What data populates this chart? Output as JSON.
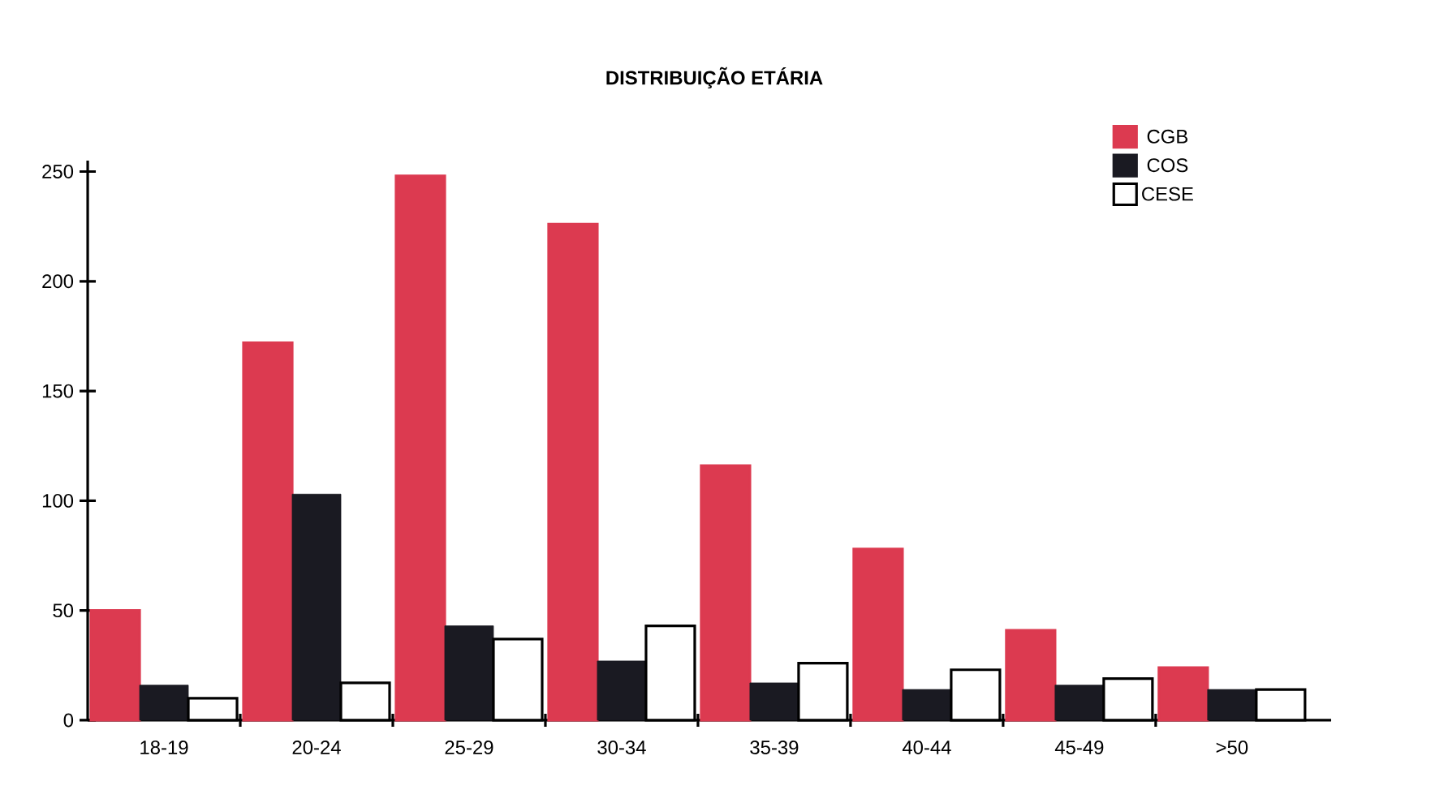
{
  "chart_data": {
    "type": "bar",
    "title": "DISTRIBUIÇÃO ETÁRIA",
    "categories": [
      "18-19",
      "20-24",
      "25-29",
      "30-34",
      "35-39",
      "40-44",
      "45-49",
      ">50"
    ],
    "series": [
      {
        "name": "CGB",
        "color": "#dc3a50",
        "values": [
          50,
          172,
          248,
          226,
          116,
          78,
          41,
          24
        ]
      },
      {
        "name": "COS",
        "color": "#1a1a22",
        "values": [
          16,
          103,
          43,
          27,
          17,
          14,
          16,
          14
        ]
      },
      {
        "name": "CESE",
        "color": "#ffffff",
        "values": [
          10,
          17,
          37,
          43,
          26,
          23,
          19,
          14
        ]
      }
    ],
    "ylim": [
      0,
      255
    ],
    "yticks": [
      0,
      50,
      100,
      150,
      200,
      250
    ],
    "grid": false,
    "legend": "top right"
  }
}
